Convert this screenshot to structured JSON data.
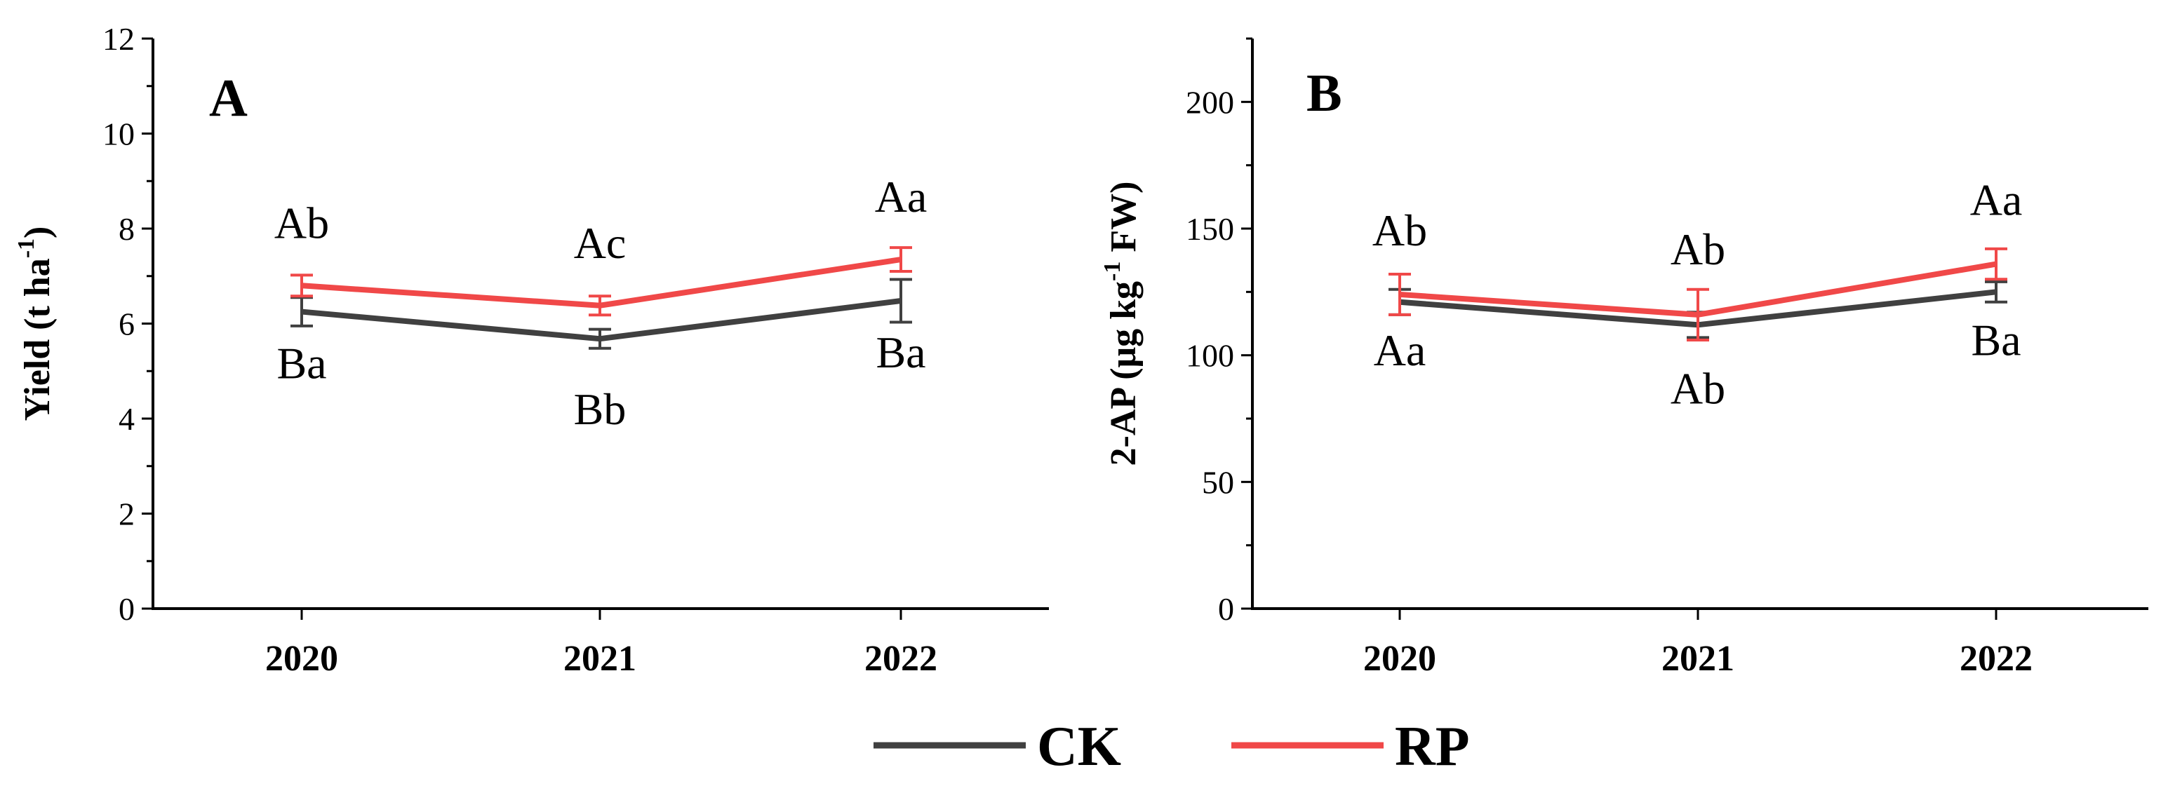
{
  "colors": {
    "CK": "#404040",
    "RP": "#f04848",
    "axis": "#000000"
  },
  "legend": [
    {
      "key": "CK",
      "label": "CK"
    },
    {
      "key": "RP",
      "label": "RP"
    }
  ],
  "chart_data": [
    {
      "type": "line",
      "panel": "A",
      "title": "",
      "xlabel": "",
      "ylabel_parts": {
        "main": "Yield (t ha",
        "sup": "-1",
        "end": ")"
      },
      "categories": [
        "2020",
        "2021",
        "2022"
      ],
      "ylim": [
        0,
        12
      ],
      "yticks": [
        0,
        2,
        4,
        6,
        8,
        10,
        12
      ],
      "ytick_labels": [
        "0",
        "2",
        "4",
        "6",
        "8",
        "10",
        "12"
      ],
      "series": [
        {
          "name": "CK",
          "values": [
            6.25,
            5.68,
            6.48
          ],
          "errors": [
            0.3,
            0.2,
            0.45
          ],
          "labels": [
            "Ba",
            "Bb",
            "Ba"
          ]
        },
        {
          "name": "RP",
          "values": [
            6.8,
            6.38,
            7.35
          ],
          "errors": [
            0.22,
            0.2,
            0.25
          ],
          "labels": [
            "Ab",
            "Ac",
            "Aa"
          ]
        }
      ]
    },
    {
      "type": "line",
      "panel": "B",
      "title": "",
      "xlabel": "",
      "ylabel_parts": {
        "main": "2-AP (μg kg",
        "sup": "-1",
        "end": " FW)"
      },
      "categories": [
        "2020",
        "2021",
        "2022"
      ],
      "ylim": [
        0,
        225
      ],
      "yticks": [
        0,
        50,
        100,
        150,
        200
      ],
      "ytick_labels": [
        "0",
        "50",
        "100",
        "150",
        "200"
      ],
      "series": [
        {
          "name": "CK",
          "values": [
            121,
            112,
            125
          ],
          "errors": [
            5,
            5,
            4
          ],
          "labels": [
            "Aa",
            "Ab",
            "Ba"
          ]
        },
        {
          "name": "RP",
          "values": [
            124,
            116,
            136
          ],
          "errors": [
            8,
            10,
            6
          ],
          "labels": [
            "Ab",
            "Ab",
            "Aa"
          ]
        }
      ]
    }
  ]
}
